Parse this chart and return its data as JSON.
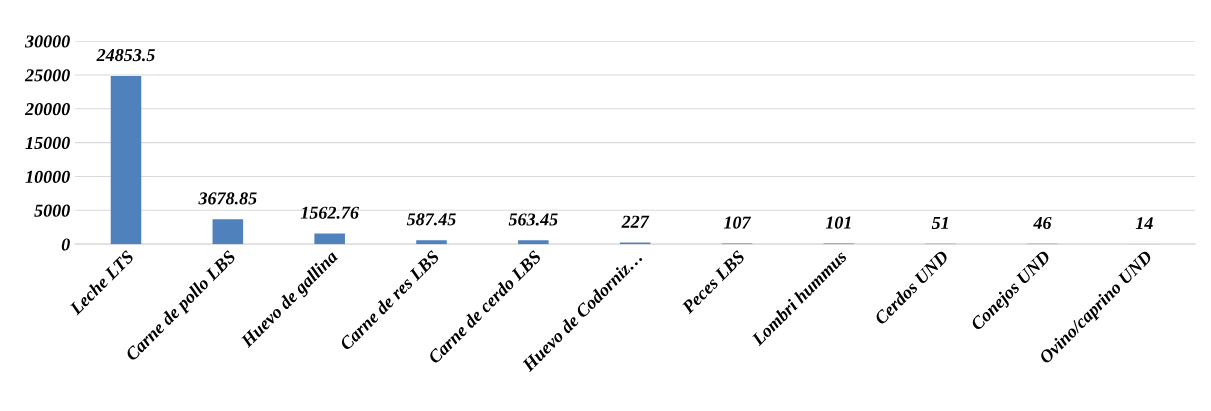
{
  "chart_data": {
    "type": "bar",
    "categories": [
      "Leche LTS",
      "Carne de pollo LBS",
      "Huevo de gallina",
      "Carne de res LBS",
      "Carne de cerdo LBS",
      "Huevo de Codorniz…",
      "Peces LBS",
      "Lombri hummus",
      "Cerdos UND",
      "Conejos UND",
      "Ovino/caprino UND"
    ],
    "values": [
      24853.5,
      3678.85,
      1562.76,
      587.45,
      563.45,
      227,
      107,
      101,
      51,
      46,
      14
    ],
    "color": "#4f81bd",
    "ylim": [
      0,
      30000
    ],
    "yticks": [
      0,
      5000,
      10000,
      15000,
      20000,
      25000,
      30000
    ],
    "grid": "y",
    "data_labels": true,
    "legend": false
  }
}
